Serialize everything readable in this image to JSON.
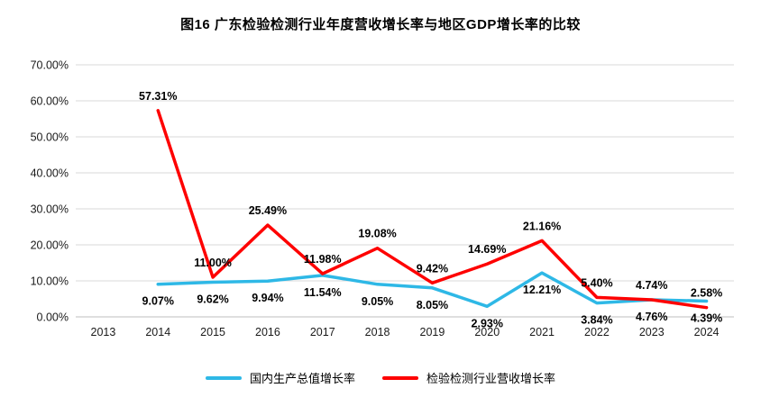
{
  "chart": {
    "title": "图16 广东检验检测行业年度营收增长率与地区GDP增长率的比较"
  },
  "chart_data": {
    "type": "line",
    "title": "图16 广东检验检测行业年度营收增长率与地区GDP增长率的比较",
    "categories": [
      "2013",
      "2014",
      "2015",
      "2016",
      "2017",
      "2018",
      "2019",
      "2020",
      "2021",
      "2022",
      "2023",
      "2024"
    ],
    "series": [
      {
        "name": "国内生产总值增长率",
        "color": "#2eb8e6",
        "label_position": "below",
        "values": [
          null,
          9.07,
          9.62,
          9.94,
          11.54,
          9.05,
          8.05,
          2.93,
          12.21,
          3.84,
          4.76,
          4.39
        ],
        "labels": [
          null,
          "9.07%",
          "9.62%",
          "9.94%",
          "11.54%",
          "9.05%",
          "8.05%",
          "2.93%",
          "12.21%",
          "3.84%",
          "4.76%",
          "4.39%"
        ]
      },
      {
        "name": "检验检测行业营收增长率",
        "color": "#fe0000",
        "label_position": "above",
        "values": [
          null,
          57.31,
          11.0,
          25.49,
          11.98,
          19.08,
          9.42,
          14.69,
          21.16,
          5.4,
          4.74,
          2.58
        ],
        "labels": [
          null,
          "57.31%",
          "11.00%",
          "25.49%",
          "11.98%",
          "19.08%",
          "9.42%",
          "14.69%",
          "21.16%",
          "5.40%",
          "4.74%",
          "2.58%"
        ]
      }
    ],
    "ylim": [
      0,
      70
    ],
    "ytick_step": 10,
    "yticks": [
      "0.00%",
      "10.00%",
      "20.00%",
      "30.00%",
      "40.00%",
      "50.00%",
      "60.00%",
      "70.00%"
    ],
    "grid": true,
    "legend_position": "bottom",
    "grid_color": "#d9d9d9",
    "axis_color": "#bfbfbf",
    "tick_label_color": "#1a1a1a"
  }
}
